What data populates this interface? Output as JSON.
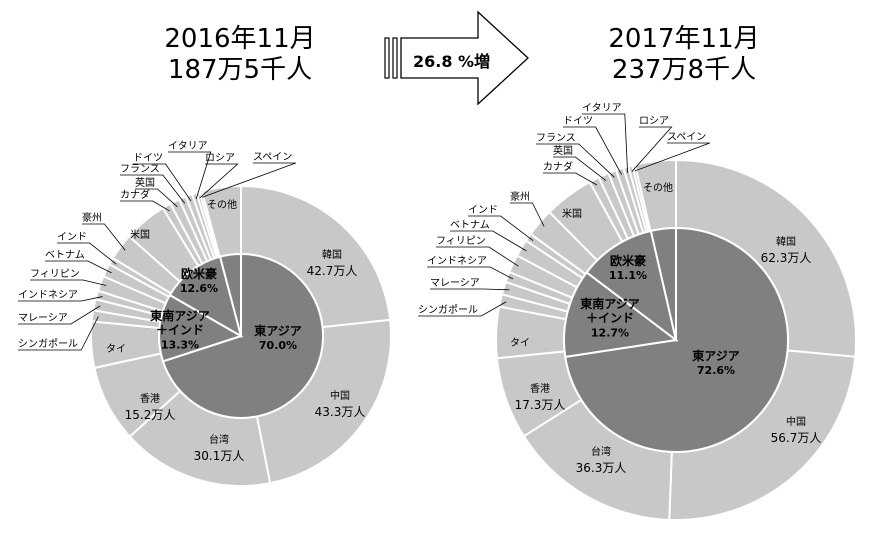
{
  "header": {
    "arrow_label": "26.8 %増"
  },
  "chart_data": [
    {
      "type": "pie",
      "title_line1": "2016年11月",
      "title_line2": "187万5千人",
      "inner": [
        {
          "name": "東アジア",
          "percent": "70.0%",
          "value": 70.0
        },
        {
          "name": "東南アジア\n＋インド",
          "percent": "13.3%",
          "value": 13.3
        },
        {
          "name": "欧米豪",
          "percent": "12.6%",
          "value": 12.6
        },
        {
          "name": "その他",
          "percent": "",
          "value": 4.1
        }
      ],
      "outer": [
        {
          "name": "韓国",
          "amount": "42.7万人",
          "value": 42.7
        },
        {
          "name": "中国",
          "amount": "43.3万人",
          "value": 43.3
        },
        {
          "name": "台湾",
          "amount": "30.1万人",
          "value": 30.1
        },
        {
          "name": "香港",
          "amount": "15.2万人",
          "value": 15.2
        },
        {
          "name": "タイ",
          "amount": "",
          "value": 9.1
        },
        {
          "name": "シンガポール",
          "amount": "",
          "value": 2.2
        },
        {
          "name": "マレーシア",
          "amount": "",
          "value": 2.2
        },
        {
          "name": "インドネシア",
          "amount": "",
          "value": 1.7
        },
        {
          "name": "フィリピン",
          "amount": "",
          "value": 3.0
        },
        {
          "name": "ベトナム",
          "amount": "",
          "value": 2.6
        },
        {
          "name": "インド",
          "amount": "",
          "value": 1.4
        },
        {
          "name": "豪州",
          "amount": "",
          "value": 5.3
        },
        {
          "name": "米国",
          "amount": "",
          "value": 8.6
        },
        {
          "name": "カナダ",
          "amount": "",
          "value": 1.7
        },
        {
          "name": "英国",
          "amount": "",
          "value": 1.9
        },
        {
          "name": "フランス",
          "amount": "",
          "value": 1.4
        },
        {
          "name": "ドイツ",
          "amount": "",
          "value": 1.3
        },
        {
          "name": "イタリア",
          "amount": "",
          "value": 0.9
        },
        {
          "name": "ロシア",
          "amount": "",
          "value": 0.6
        },
        {
          "name": "スペイン",
          "amount": "",
          "value": 0.5
        },
        {
          "name": "その他",
          "amount": "",
          "value": 7.7
        }
      ]
    },
    {
      "type": "pie",
      "title_line1": "2017年11月",
      "title_line2": "237万8千人",
      "inner": [
        {
          "name": "東アジア",
          "percent": "72.6%",
          "value": 72.6
        },
        {
          "name": "東南アジア\n＋インド",
          "percent": "12.7%",
          "value": 12.7
        },
        {
          "name": "欧米豪",
          "percent": "11.1%",
          "value": 11.1
        },
        {
          "name": "その他",
          "percent": "",
          "value": 3.6
        }
      ],
      "outer": [
        {
          "name": "韓国",
          "amount": "62.3万人",
          "value": 62.3
        },
        {
          "name": "中国",
          "amount": "56.7万人",
          "value": 56.7
        },
        {
          "name": "台湾",
          "amount": "36.3万人",
          "value": 36.3
        },
        {
          "name": "香港",
          "amount": "17.3万人",
          "value": 17.3
        },
        {
          "name": "タイ",
          "amount": "",
          "value": 10.8
        },
        {
          "name": "シンガポール",
          "amount": "",
          "value": 2.6
        },
        {
          "name": "マレーシア",
          "amount": "",
          "value": 2.7
        },
        {
          "name": "インドネシア",
          "amount": "",
          "value": 2.2
        },
        {
          "name": "フィリピン",
          "amount": "",
          "value": 3.8
        },
        {
          "name": "ベトナム",
          "amount": "",
          "value": 3.6
        },
        {
          "name": "インド",
          "amount": "",
          "value": 1.7
        },
        {
          "name": "豪州",
          "amount": "",
          "value": 6.0
        },
        {
          "name": "米国",
          "amount": "",
          "value": 10.5
        },
        {
          "name": "カナダ",
          "amount": "",
          "value": 2.1
        },
        {
          "name": "英国",
          "amount": "",
          "value": 2.2
        },
        {
          "name": "フランス",
          "amount": "",
          "value": 1.7
        },
        {
          "name": "ドイツ",
          "amount": "",
          "value": 1.6
        },
        {
          "name": "イタリア",
          "amount": "",
          "value": 1.1
        },
        {
          "name": "ロシア",
          "amount": "",
          "value": 0.8
        },
        {
          "name": "スペイン",
          "amount": "",
          "value": 0.6
        },
        {
          "name": "その他",
          "amount": "",
          "value": 8.6
        }
      ]
    }
  ],
  "colors": {
    "inner_fill": "#808080",
    "outer_fill": "#c8c8c8",
    "stroke": "#ffffff",
    "leader": "#000000"
  }
}
